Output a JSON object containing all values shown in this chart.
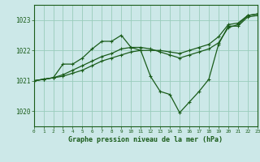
{
  "title": "Graphe pression niveau de la mer (hPa)",
  "background_color": "#cce8e8",
  "grid_color": "#99ccbb",
  "line_color": "#1a5c1a",
  "xlim": [
    0,
    23
  ],
  "ylim": [
    1019.5,
    1023.5
  ],
  "yticks": [
    1020,
    1021,
    1022,
    1023
  ],
  "xticks": [
    0,
    1,
    2,
    3,
    4,
    5,
    6,
    7,
    8,
    9,
    10,
    11,
    12,
    13,
    14,
    15,
    16,
    17,
    18,
    19,
    20,
    21,
    22,
    23
  ],
  "series": [
    [
      1021.0,
      1021.05,
      1021.1,
      1021.55,
      1021.55,
      1021.75,
      1022.05,
      1022.3,
      1022.3,
      1022.5,
      1022.1,
      1022.0,
      1021.15,
      1020.65,
      1020.55,
      1019.95,
      1020.3,
      1020.65,
      1021.05,
      1022.2,
      1022.8,
      1022.8,
      1023.1,
      1023.15
    ],
    [
      1021.0,
      1021.05,
      1021.1,
      1021.2,
      1021.35,
      1021.5,
      1021.65,
      1021.8,
      1021.9,
      1022.05,
      1022.1,
      1022.1,
      1022.05,
      1021.95,
      1021.85,
      1021.75,
      1021.85,
      1021.95,
      1022.05,
      1022.25,
      1022.75,
      1022.85,
      1023.15,
      1023.2
    ],
    [
      1021.0,
      1021.05,
      1021.1,
      1021.15,
      1021.25,
      1021.35,
      1021.5,
      1021.65,
      1021.75,
      1021.85,
      1021.95,
      1022.0,
      1022.0,
      1022.0,
      1021.95,
      1021.9,
      1022.0,
      1022.1,
      1022.2,
      1022.45,
      1022.85,
      1022.9,
      1023.15,
      1023.2
    ]
  ]
}
